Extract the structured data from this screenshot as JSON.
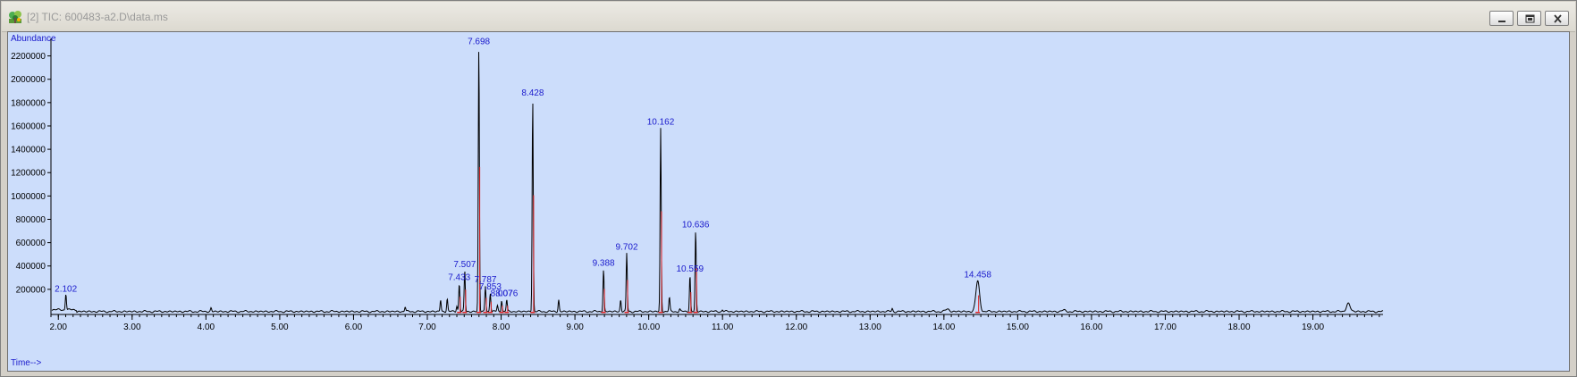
{
  "window": {
    "title": "[2] TIC: 600483-a2.D\\data.ms",
    "controls": [
      "minimize",
      "restore",
      "close"
    ],
    "app_icon": "chemstation-tree-icon"
  },
  "colors": {
    "plot_background": "#ccddfb",
    "trace": "#000000",
    "integration": "#e02020",
    "labels": "#1a1acc",
    "window_frame": "#d4d0c8"
  },
  "chart_data": {
    "type": "line",
    "title": "",
    "xlabel": "Time-->",
    "ylabel": "Abundance",
    "xlim": [
      1.9,
      19.95
    ],
    "ylim": [
      0,
      2350000
    ],
    "x_ticks": [
      2.0,
      3.0,
      4.0,
      5.0,
      6.0,
      7.0,
      8.0,
      9.0,
      10.0,
      11.0,
      12.0,
      13.0,
      14.0,
      15.0,
      16.0,
      17.0,
      18.0,
      19.0
    ],
    "x_tick_labels": [
      "2.00",
      "3.00",
      "4.00",
      "5.00",
      "6.00",
      "7.00",
      "8.00",
      "9.00",
      "10.00",
      "11.00",
      "12.00",
      "13.00",
      "14.00",
      "15.00",
      "16.00",
      "17.00",
      "18.00",
      "19.00"
    ],
    "y_ticks": [
      200000,
      400000,
      600000,
      800000,
      1000000,
      1200000,
      1400000,
      1600000,
      1800000,
      2000000,
      2200000
    ],
    "y_tick_labels": [
      "200000",
      "400000",
      "600000",
      "800000",
      "1000000",
      "1200000",
      "1400000",
      "1600000",
      "1800000",
      "2000000",
      "2200000"
    ],
    "baseline": 10000,
    "labeled_peaks": [
      {
        "rt": 2.102,
        "label": "2.102",
        "height": 150000,
        "integrated": false
      },
      {
        "rt": 7.433,
        "label": "7.433",
        "height": 250000,
        "integrated": true
      },
      {
        "rt": 7.507,
        "label": "7.507",
        "height": 360000,
        "integrated": true
      },
      {
        "rt": 7.698,
        "label": "7.698",
        "height": 2270000,
        "integrated": true
      },
      {
        "rt": 7.787,
        "label": "7.787",
        "height": 230000,
        "integrated": true
      },
      {
        "rt": 7.853,
        "label": "7.853",
        "height": 170000,
        "integrated": true
      },
      {
        "rt": 8.007,
        "label": "8.007",
        "height": 110000,
        "integrated": true
      },
      {
        "rt": 8.076,
        "label": "8.076",
        "height": 110000,
        "integrated": true
      },
      {
        "rt": 8.428,
        "label": "8.428",
        "height": 1830000,
        "integrated": true
      },
      {
        "rt": 9.388,
        "label": "9.388",
        "height": 370000,
        "integrated": true
      },
      {
        "rt": 9.702,
        "label": "9.702",
        "height": 510000,
        "integrated": true
      },
      {
        "rt": 10.162,
        "label": "10.162",
        "height": 1580000,
        "integrated": true
      },
      {
        "rt": 10.559,
        "label": "10.559",
        "height": 320000,
        "integrated": true
      },
      {
        "rt": 10.636,
        "label": "10.636",
        "height": 700000,
        "integrated": true
      },
      {
        "rt": 14.458,
        "label": "14.458",
        "height": 270000,
        "integrated": true
      }
    ],
    "minor_peaks": [
      {
        "rt": 4.07,
        "height": 40000
      },
      {
        "rt": 6.7,
        "height": 50000
      },
      {
        "rt": 7.18,
        "height": 110000
      },
      {
        "rt": 7.27,
        "height": 120000
      },
      {
        "rt": 7.4,
        "height": 60000
      },
      {
        "rt": 7.95,
        "height": 60000
      },
      {
        "rt": 8.78,
        "height": 110000
      },
      {
        "rt": 9.62,
        "height": 110000
      },
      {
        "rt": 10.28,
        "height": 130000
      },
      {
        "rt": 10.42,
        "height": 30000
      },
      {
        "rt": 11.0,
        "height": 25000
      },
      {
        "rt": 13.3,
        "height": 35000
      },
      {
        "rt": 14.05,
        "height": 30000
      },
      {
        "rt": 15.62,
        "height": 20000
      },
      {
        "rt": 19.48,
        "height": 80000
      }
    ]
  }
}
